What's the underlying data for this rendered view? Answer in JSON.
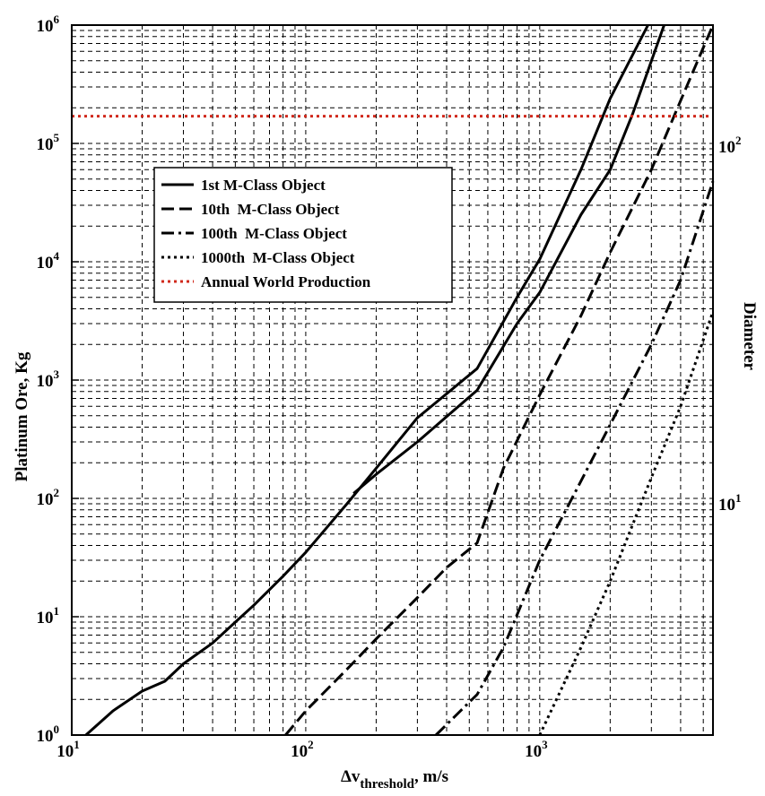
{
  "chart_data": {
    "type": "line",
    "xscale": "log",
    "yscale": "log",
    "xlim": [
      10,
      5500
    ],
    "ylim": [
      1,
      1000000
    ],
    "grid": true,
    "legend_position": "upper-left",
    "xlabel": {
      "main": "Δv",
      "sub": "threshold",
      "suffix": ", m/s"
    },
    "ylabel": "Platinum Ore, Kg",
    "y2label": "Diameter",
    "x_ticks": [
      {
        "value": 10,
        "base": "10",
        "exp": "1"
      },
      {
        "value": 100,
        "base": "10",
        "exp": "2"
      },
      {
        "value": 1000,
        "base": "10",
        "exp": "3"
      }
    ],
    "y_ticks": [
      {
        "value": 1,
        "base": "10",
        "exp": "0"
      },
      {
        "value": 10,
        "base": "10",
        "exp": "1"
      },
      {
        "value": 100,
        "base": "10",
        "exp": "2"
      },
      {
        "value": 1000,
        "base": "10",
        "exp": "3"
      },
      {
        "value": 10000,
        "base": "10",
        "exp": "4"
      },
      {
        "value": 100000,
        "base": "10",
        "exp": "5"
      },
      {
        "value": 1000000,
        "base": "10",
        "exp": "6"
      }
    ],
    "y2_ticks": [
      {
        "label": "10",
        "exp": "1",
        "y_value": 90
      },
      {
        "label": "10",
        "exp": "2",
        "y_value": 95000
      }
    ],
    "series": [
      {
        "name": "1st M-Class Object",
        "style": "solid",
        "color": "#000000",
        "points": [
          [
            11.5,
            1
          ],
          [
            15,
            1.6
          ],
          [
            20,
            2.35
          ],
          [
            25,
            2.85
          ],
          [
            30,
            4
          ],
          [
            40,
            6
          ],
          [
            50,
            9
          ],
          [
            60,
            12.5
          ],
          [
            80,
            22
          ],
          [
            100,
            35
          ],
          [
            150,
            90
          ],
          [
            200,
            180
          ],
          [
            300,
            480
          ],
          [
            540,
            1250
          ],
          [
            800,
            5000
          ],
          [
            1000,
            10500
          ],
          [
            1500,
            60000
          ],
          [
            2000,
            240000
          ],
          [
            2900,
            1000000
          ]
        ]
      },
      {
        "name": "1st M-Class Object",
        "style": "solid",
        "color": "#000000",
        "points": [
          [
            160,
            110
          ],
          [
            200,
            160
          ],
          [
            300,
            300
          ],
          [
            540,
            820
          ],
          [
            800,
            3000
          ],
          [
            1000,
            5500
          ],
          [
            1500,
            25000
          ],
          [
            2000,
            60000
          ],
          [
            2500,
            180000
          ],
          [
            3400,
            1000000
          ]
        ]
      },
      {
        "name": "10th M-Class Object",
        "style": "dashed",
        "color": "#000000",
        "points": [
          [
            82,
            1
          ],
          [
            100,
            1.6
          ],
          [
            150,
            3.6
          ],
          [
            200,
            6.5
          ],
          [
            300,
            14.5
          ],
          [
            400,
            26
          ],
          [
            540,
            42
          ],
          [
            700,
            180
          ],
          [
            1000,
            750
          ],
          [
            1500,
            3500
          ],
          [
            2000,
            12000
          ],
          [
            3000,
            60000
          ],
          [
            4000,
            230000
          ],
          [
            5500,
            1000000
          ]
        ]
      },
      {
        "name": "100th M-Class Object",
        "style": "dashdot",
        "color": "#000000",
        "points": [
          [
            360,
            1
          ],
          [
            540,
            2.2
          ],
          [
            700,
            5.5
          ],
          [
            1000,
            30
          ],
          [
            1500,
            140
          ],
          [
            2000,
            420
          ],
          [
            3000,
            2000
          ],
          [
            4000,
            7000
          ],
          [
            5500,
            48000
          ]
        ]
      },
      {
        "name": "1000th M-Class Object",
        "style": "dotted",
        "color": "#000000",
        "points": [
          [
            1000,
            1
          ],
          [
            1500,
            5.5
          ],
          [
            2000,
            20
          ],
          [
            3000,
            150
          ],
          [
            4000,
            600
          ],
          [
            5500,
            3800
          ]
        ]
      },
      {
        "name": "Annual World Production",
        "style": "dotted",
        "color": "#d0291c",
        "points": [
          [
            10,
            170000
          ],
          [
            5500,
            170000
          ]
        ]
      }
    ],
    "legend": [
      {
        "label": "1st M-Class Object",
        "style": "solid",
        "color": "#000000"
      },
      {
        "label": "10th  M-Class Object",
        "style": "dashed",
        "color": "#000000"
      },
      {
        "label": "100th  M-Class Object",
        "style": "dashdot",
        "color": "#000000"
      },
      {
        "label": "1000th  M-Class Object",
        "style": "dotted",
        "color": "#000000"
      },
      {
        "label": "Annual World Production",
        "style": "dotted",
        "color": "#d0291c"
      }
    ]
  }
}
